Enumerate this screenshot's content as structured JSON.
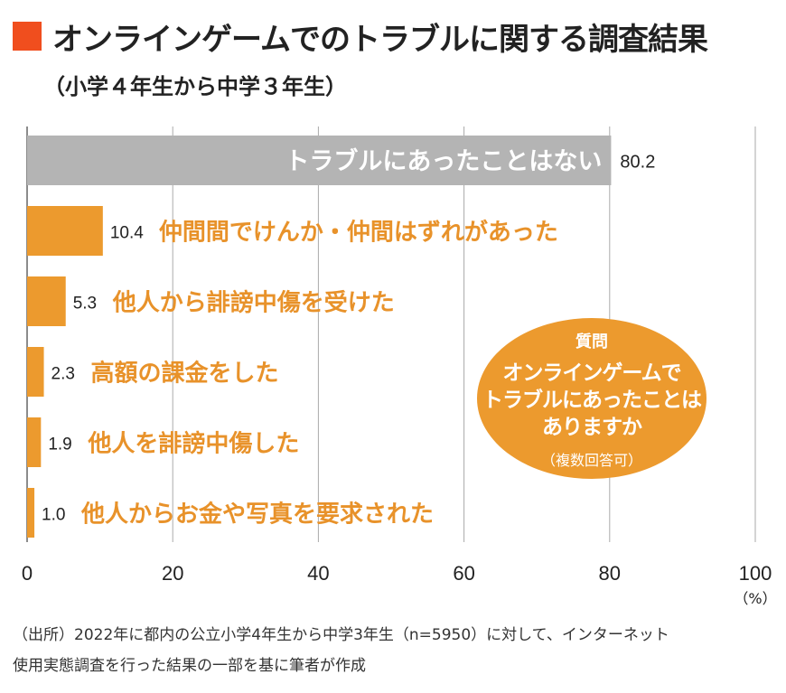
{
  "title": "オンラインゲームでのトラブルに関する調査結果",
  "subtitle": "（小学４年生から中学３年生）",
  "chart_data": {
    "type": "bar",
    "orientation": "horizontal",
    "categories": [
      "トラブルにあったことはない",
      "仲間間でけんか・仲間はずれがあった",
      "他人から誹謗中傷を受けた",
      "高額の課金をした",
      "他人を誹謗中傷した",
      "他人からお金や写真を要求された"
    ],
    "values": [
      80.2,
      10.4,
      5.3,
      2.3,
      1.9,
      1.0
    ],
    "value_labels": [
      "80.2",
      "10.4",
      "5.3",
      "2.3",
      "1.9",
      "1.0"
    ],
    "xlim": [
      0,
      100
    ],
    "xticks": [
      "0",
      "20",
      "40",
      "60",
      "80",
      "100"
    ],
    "xunit": "（%）",
    "grid": true,
    "colors": {
      "first": "#B4B4B4",
      "rest": "#EC9A2E",
      "label": "#E8922A"
    }
  },
  "question": {
    "heading": "質問",
    "lines": [
      "オンラインゲームで",
      "トラブルにあったことは",
      "ありますか"
    ],
    "note": "（複数回答可）"
  },
  "footer": [
    "（出所）2022年に都内の公立小学4年生から中学3年生（n=5950）に対して、インターネット",
    "使用実態調査を行った結果の一部を基に筆者が作成"
  ]
}
